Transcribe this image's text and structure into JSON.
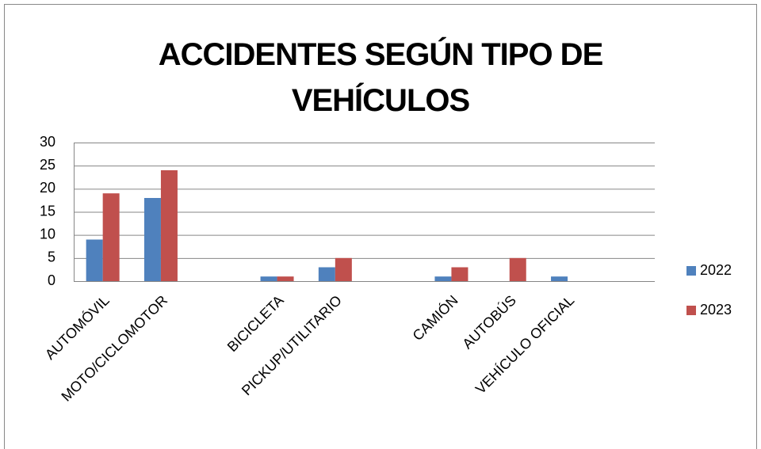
{
  "chart_data": {
    "type": "bar",
    "title": "ACCIDENTES SEGÚN TIPO DE VEHÍCULOS",
    "categories": [
      "AUTOMÓVIL",
      "MOTO/CICLOMOTOR",
      null,
      "BICICLETA",
      "PICKUP/UTILITARIO",
      null,
      "CAMIÓN",
      "AUTOBÚS",
      "VEHÍCULO OFICIAL",
      null
    ],
    "series": [
      {
        "name": "2022",
        "color": "#4f81bd",
        "values": [
          9,
          18,
          null,
          1,
          3,
          null,
          1,
          0,
          1,
          null
        ]
      },
      {
        "name": "2023",
        "color": "#c0504d",
        "values": [
          19,
          24,
          null,
          1,
          5,
          null,
          3,
          5,
          0,
          null
        ]
      }
    ],
    "ylim": [
      0,
      30
    ],
    "yticks": [
      0,
      5,
      10,
      15,
      20,
      25,
      30
    ],
    "grid": true,
    "legend": "right"
  }
}
